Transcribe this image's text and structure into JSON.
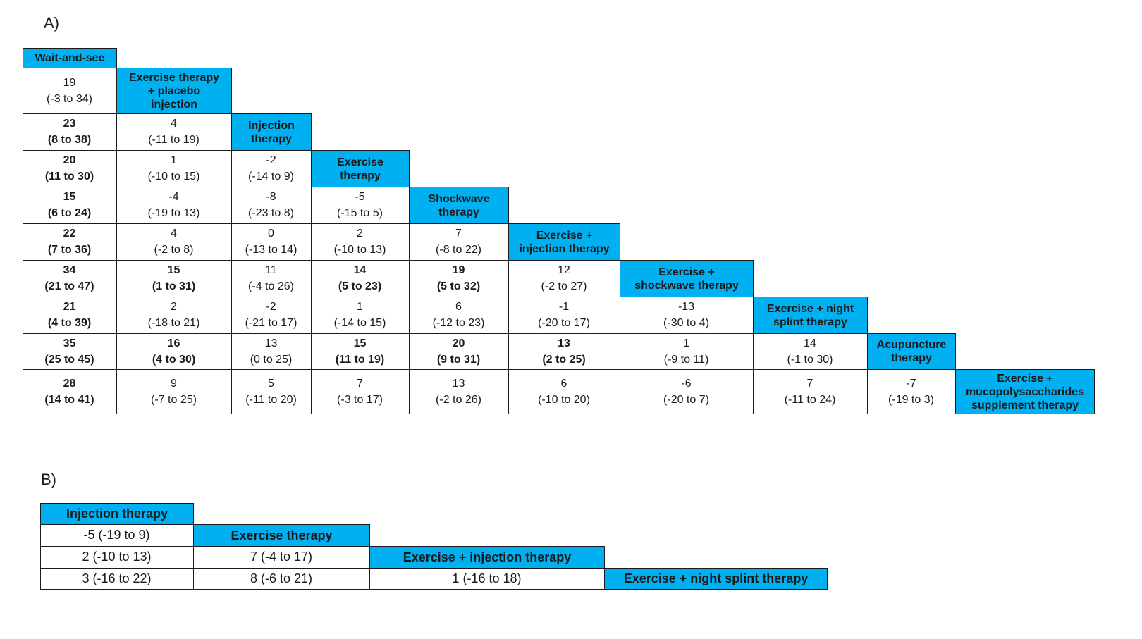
{
  "panel_a": {
    "label": "A)",
    "treatments": [
      "Wait-and-see",
      "Exercise therapy\n+ placebo\ninjection",
      "Injection\ntherapy",
      "Exercise\ntherapy",
      "Shockwave\ntherapy",
      "Exercise +\ninjection therapy",
      "Exercise +\nshockwave therapy",
      "Exercise + night\nsplint therapy",
      "Acupuncture\ntherapy",
      "Exercise +\nmucopolysaccharides\nsupplement therapy"
    ],
    "rows": [
      [
        {
          "e": "19",
          "ci": "(-3 to 34)",
          "b": false
        }
      ],
      [
        {
          "e": "23",
          "ci": "(8 to 38)",
          "b": true
        },
        {
          "e": "4",
          "ci": "(-11 to 19)",
          "b": false
        }
      ],
      [
        {
          "e": "20",
          "ci": "(11 to 30)",
          "b": true
        },
        {
          "e": "1",
          "ci": "(-10 to 15)",
          "b": false
        },
        {
          "e": "-2",
          "ci": "(-14 to 9)",
          "b": false
        }
      ],
      [
        {
          "e": "15",
          "ci": "(6 to 24)",
          "b": true
        },
        {
          "e": "-4",
          "ci": "(-19 to 13)",
          "b": false
        },
        {
          "e": "-8",
          "ci": "(-23 to 8)",
          "b": false
        },
        {
          "e": "-5",
          "ci": "(-15 to 5)",
          "b": false
        }
      ],
      [
        {
          "e": "22",
          "ci": "(7 to 36)",
          "b": true
        },
        {
          "e": "4",
          "ci": "(-2 to 8)",
          "b": false
        },
        {
          "e": "0",
          "ci": "(-13 to 14)",
          "b": false
        },
        {
          "e": "2",
          "ci": "(-10 to 13)",
          "b": false
        },
        {
          "e": "7",
          "ci": "(-8 to 22)",
          "b": false
        }
      ],
      [
        {
          "e": "34",
          "ci": "(21 to 47)",
          "b": true
        },
        {
          "e": "15",
          "ci": "(1 to 31)",
          "b": true
        },
        {
          "e": "11",
          "ci": "(-4 to 26)",
          "b": false
        },
        {
          "e": "14",
          "ci": "(5 to 23)",
          "b": true
        },
        {
          "e": "19",
          "ci": "(5 to 32)",
          "b": true
        },
        {
          "e": "12",
          "ci": "(-2 to 27)",
          "b": false
        }
      ],
      [
        {
          "e": "21",
          "ci": "(4 to 39)",
          "b": true
        },
        {
          "e": "2",
          "ci": "(-18 to 21)",
          "b": false
        },
        {
          "e": "-2",
          "ci": "(-21 to 17)",
          "b": false
        },
        {
          "e": "1",
          "ci": "(-14 to 15)",
          "b": false
        },
        {
          "e": "6",
          "ci": "(-12 to 23)",
          "b": false
        },
        {
          "e": "-1",
          "ci": "(-20 to 17)",
          "b": false
        },
        {
          "e": "-13",
          "ci": "(-30 to 4)",
          "b": false
        }
      ],
      [
        {
          "e": "35",
          "ci": "(25 to 45)",
          "b": true
        },
        {
          "e": "16",
          "ci": "(4 to 30)",
          "b": true
        },
        {
          "e": "13",
          "ci": "(0 to 25)",
          "b": false
        },
        {
          "e": "15",
          "ci": "(11 to 19)",
          "b": true
        },
        {
          "e": "20",
          "ci": "(9 to 31)",
          "b": true
        },
        {
          "e": "13",
          "ci": "(2 to 25)",
          "b": true
        },
        {
          "e": "1",
          "ci": "(-9 to 11)",
          "b": false
        },
        {
          "e": "14",
          "ci": "(-1 to 30)",
          "b": false
        }
      ],
      [
        {
          "e": "28",
          "ci": "(14 to 41)",
          "b": true
        },
        {
          "e": "9",
          "ci": "(-7 to 25)",
          "b": false
        },
        {
          "e": "5",
          "ci": "(-11 to 20)",
          "b": false
        },
        {
          "e": "7",
          "ci": "(-3 to 17)",
          "b": false
        },
        {
          "e": "13",
          "ci": "(-2 to 26)",
          "b": false
        },
        {
          "e": "6",
          "ci": "(-10 to 20)",
          "b": false
        },
        {
          "e": "-6",
          "ci": "(-20 to 7)",
          "b": false
        },
        {
          "e": "7",
          "ci": "(-11 to 24)",
          "b": false
        },
        {
          "e": "-7",
          "ci": "(-19 to 3)",
          "b": false
        }
      ]
    ]
  },
  "panel_b": {
    "label": "B)",
    "treatments": [
      "Injection therapy",
      "Exercise therapy",
      "Exercise + injection therapy",
      "Exercise + night splint therapy"
    ],
    "rows": [
      [
        "-5 (-19 to 9)"
      ],
      [
        "2 (-10 to 13)",
        "7 (-4 to 17)"
      ],
      [
        "3 (-16 to 22)",
        "8 (-6 to 21)",
        "1 (-16 to 18)"
      ]
    ]
  }
}
